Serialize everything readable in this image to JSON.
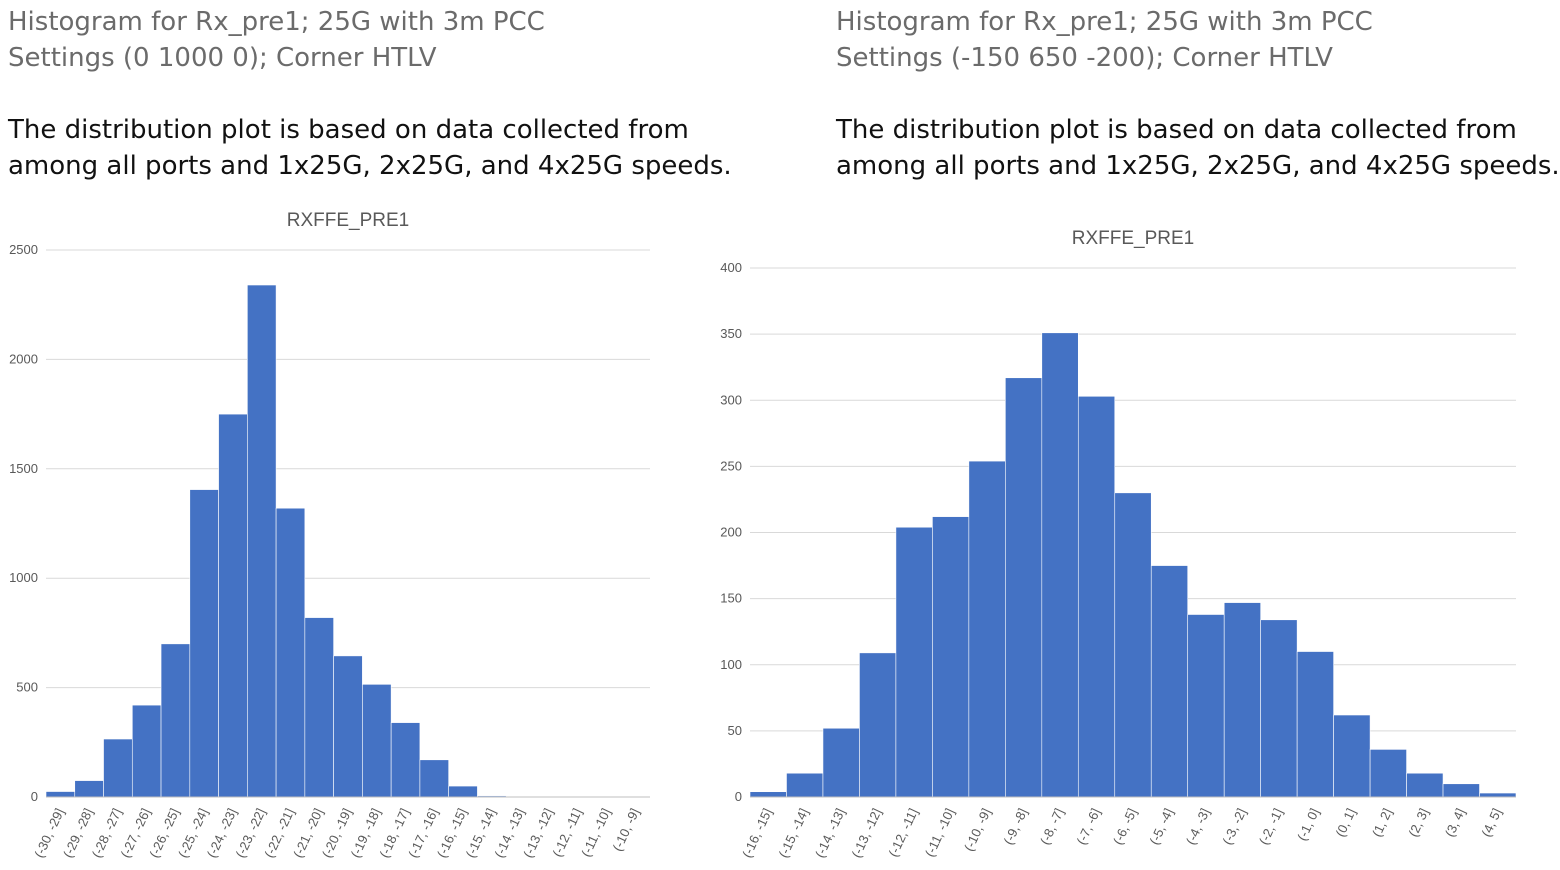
{
  "panels": [
    {
      "heading_line1": "Histogram for Rx_pre1; 25G with 3m PCC",
      "heading_line2": "Settings (0 1000 0); Corner HTLV",
      "description_line1": "The distribution plot is based on data collected from",
      "description_line2": "among all ports and 1x25G, 2x25G, and 4x25G speeds."
    },
    {
      "heading_line1": "Histogram for Rx_pre1; 25G with 3m PCC",
      "heading_line2": "Settings (-150 650 -200); Corner HTLV",
      "description_line1": "The distribution plot is based on data collected from",
      "description_line2": "among all ports and 1x25G, 2x25G, and 4x25G speeds."
    }
  ],
  "chart_data": [
    {
      "type": "bar",
      "title": "RXFFE_PRE1",
      "bar_color": "#4472C4",
      "grid": true,
      "ylim": [
        0,
        2500
      ],
      "yticks": [
        0,
        500,
        1000,
        1500,
        2000,
        2500
      ],
      "categories": [
        "(-30, -29]",
        "(-29, -28]",
        "(-28, -27]",
        "(-27, -26]",
        "(-26, -25]",
        "(-25, -24]",
        "(-24, -23]",
        "(-23, -22]",
        "(-22, -21]",
        "(-21, -20]",
        "(-20, -19]",
        "(-19, -18]",
        "(-18, -17]",
        "(-17, -16]",
        "(-16, -15]",
        "(-15, -14]",
        "(-14, -13]",
        "(-13, -12]",
        "(-12, -11]",
        "(-11, -10]",
        "(-10, -9]"
      ],
      "values": [
        25,
        75,
        265,
        420,
        700,
        1405,
        1750,
        2340,
        1320,
        820,
        645,
        515,
        340,
        170,
        50,
        5,
        0,
        0,
        0,
        0,
        0
      ]
    },
    {
      "type": "bar",
      "title": "RXFFE_PRE1",
      "bar_color": "#4472C4",
      "grid": true,
      "ylim": [
        0,
        400
      ],
      "yticks": [
        0,
        50,
        100,
        150,
        200,
        250,
        300,
        350,
        400
      ],
      "categories": [
        "(-16, -15]",
        "(-15, -14]",
        "(-14, -13]",
        "(-13, -12]",
        "(-12, -11]",
        "(-11, -10]",
        "(-10, -9]",
        "(-9, -8]",
        "(-8, -7]",
        "(-7, -6]",
        "(-6, -5]",
        "(-5, -4]",
        "(-4, -3]",
        "(-3, -2]",
        "(-2, -1]",
        "(-1, 0]",
        "(0, 1]",
        "(1, 2]",
        "(2, 3]",
        "(3, 4]",
        "(4, 5]"
      ],
      "values": [
        4,
        18,
        52,
        109,
        204,
        212,
        254,
        317,
        351,
        303,
        230,
        175,
        138,
        147,
        134,
        110,
        62,
        36,
        18,
        10,
        3
      ]
    }
  ]
}
